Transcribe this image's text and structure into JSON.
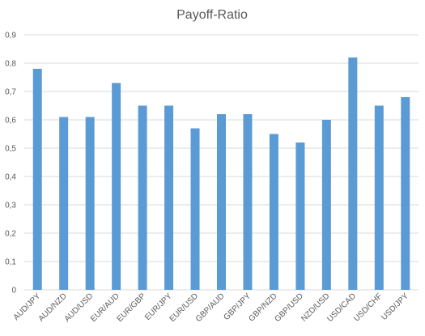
{
  "chart_data": {
    "type": "bar",
    "title": "Payoff-Ratio",
    "xlabel": "",
    "ylabel": "",
    "categories": [
      "AUD/JPY",
      "AUD/NZD",
      "AUD/USD",
      "EUR/AUD",
      "EUR/GBP",
      "EUR/JPY",
      "EUR/USD",
      "GBP/AUD",
      "GBP/JPY",
      "GBP/NZD",
      "GBP/USD",
      "NZD/USD",
      "USD/CAD",
      "USD/CHF",
      "USD/JPY"
    ],
    "values": [
      0.78,
      0.61,
      0.61,
      0.73,
      0.65,
      0.65,
      0.57,
      0.62,
      0.62,
      0.55,
      0.52,
      0.6,
      0.82,
      0.65,
      0.68
    ],
    "ylim": [
      0,
      0.9
    ],
    "yticks": [
      "0",
      "0,1",
      "0,2",
      "0,3",
      "0,4",
      "0,5",
      "0,6",
      "0,7",
      "0,8",
      "0,9"
    ],
    "grid": true,
    "legend": "none",
    "colors": {
      "bar": "#5b9bd5",
      "grid": "#d9d9d9",
      "text": "#595959"
    }
  }
}
